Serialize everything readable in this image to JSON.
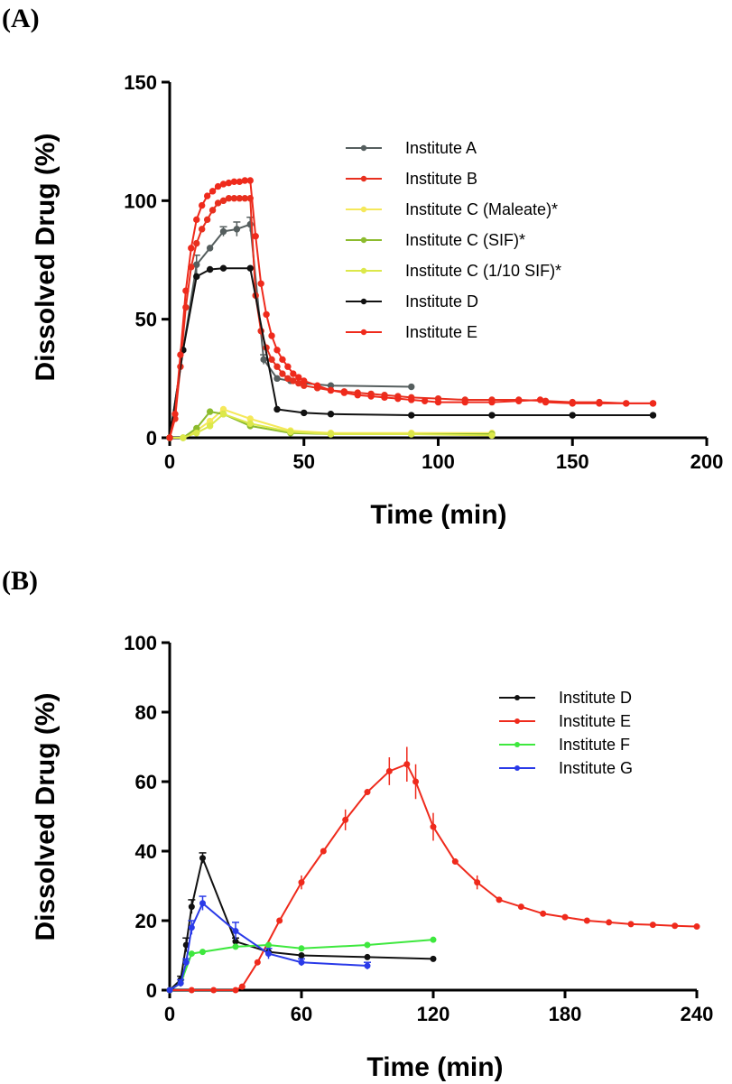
{
  "chart_data": [
    {
      "panel_label": "(A)",
      "type": "line",
      "xlabel": "Time (min)",
      "ylabel": "Dissolved Drug (%)",
      "xlim": [
        0,
        200
      ],
      "ylim": [
        0,
        150
      ],
      "xticks": [
        0,
        50,
        100,
        150,
        200
      ],
      "yticks": [
        0,
        50,
        100,
        150
      ],
      "xtick_labels": [
        "0",
        "50",
        "100",
        "150",
        "200"
      ],
      "ytick_labels": [
        "0",
        "50",
        "100",
        "150"
      ],
      "legend_position": "upper-right",
      "series": [
        {
          "name": "Institute A",
          "color": "#555e5e",
          "x": [
            0,
            5,
            10,
            15,
            20,
            25,
            30,
            35,
            40,
            45,
            50,
            60,
            90
          ],
          "y": [
            0,
            37,
            73,
            80,
            87,
            88,
            90,
            33,
            25,
            24,
            23,
            22,
            21.5
          ],
          "err": [
            0,
            0,
            4,
            0,
            2,
            3,
            3,
            2,
            0,
            0,
            0,
            0,
            0
          ]
        },
        {
          "name": "Institute B",
          "color": "#e8301f",
          "x": [
            0,
            2,
            4,
            6,
            8,
            10,
            12,
            14,
            16,
            18,
            20,
            22,
            24,
            26,
            28,
            30,
            32,
            34,
            36,
            38,
            40,
            42,
            44,
            46,
            48,
            50,
            55,
            60,
            65,
            70,
            75,
            80,
            85,
            90,
            100,
            110,
            120,
            130,
            140,
            150,
            160,
            170,
            180
          ],
          "y": [
            0,
            8,
            30,
            55,
            72,
            82,
            88,
            92,
            96,
            99,
            100,
            101,
            101,
            101,
            101,
            101,
            60,
            45,
            38,
            33,
            30,
            27,
            25,
            24,
            23,
            22,
            21,
            20,
            19.5,
            19,
            18.5,
            18,
            17.5,
            17,
            16.5,
            16,
            16,
            16,
            15.5,
            15,
            15,
            14.5,
            14.5
          ]
        },
        {
          "name": "Institute C (Maleate)*",
          "color": "#f5e85a",
          "x": [
            0,
            5,
            10,
            15,
            20,
            30,
            45,
            60,
            90,
            120
          ],
          "y": [
            0,
            0,
            3,
            7,
            12,
            8,
            3,
            2,
            2,
            2
          ]
        },
        {
          "name": "Institute C (SIF)*",
          "color": "#8cbb2e",
          "x": [
            0,
            5,
            10,
            15,
            20,
            30,
            45,
            60,
            90,
            120
          ],
          "y": [
            0,
            0,
            4,
            11,
            10,
            5,
            2,
            1.5,
            1.5,
            1.5
          ]
        },
        {
          "name": "Institute C (1/10 SIF)*",
          "color": "#dce84a",
          "x": [
            0,
            5,
            10,
            15,
            20,
            30,
            45,
            60,
            90,
            120
          ],
          "y": [
            0,
            0,
            2,
            5,
            10,
            6,
            2.5,
            1.5,
            1.5,
            1
          ]
        },
        {
          "name": "Institute D",
          "color": "#111111",
          "x": [
            0,
            5,
            10,
            15,
            20,
            30,
            40,
            50,
            60,
            90,
            120,
            150,
            180
          ],
          "y": [
            0,
            37,
            68,
            71,
            71.5,
            71.5,
            12,
            10.5,
            10,
            9.5,
            9.5,
            9.5,
            9.5
          ]
        },
        {
          "name": "Institute E",
          "color": "#ef2a1c",
          "x": [
            0,
            2,
            4,
            6,
            8,
            10,
            12,
            14,
            16,
            18,
            20,
            22,
            24,
            26,
            28,
            30,
            32,
            34,
            36,
            38,
            40,
            42,
            44,
            46,
            48,
            50,
            55,
            60,
            65,
            70,
            75,
            80,
            85,
            90,
            95,
            100,
            110,
            120,
            130,
            138,
            140,
            150,
            160,
            170,
            180
          ],
          "y": [
            0,
            10,
            35,
            62,
            80,
            92,
            98,
            102,
            104,
            106,
            107,
            107.5,
            108,
            108,
            108.5,
            108.5,
            85,
            65,
            52,
            43,
            37,
            33,
            30,
            27,
            25.5,
            24,
            22,
            20,
            19,
            18,
            17.5,
            17,
            16.5,
            16,
            15.5,
            15,
            15,
            15,
            15.5,
            16,
            15,
            14.5,
            14.5,
            14.5,
            14.5
          ]
        }
      ]
    },
    {
      "panel_label": "(B)",
      "type": "line",
      "xlabel": "Time (min)",
      "ylabel": "Dissolved Drug (%)",
      "xlim": [
        0,
        240
      ],
      "ylim": [
        0,
        100
      ],
      "xticks": [
        0,
        60,
        120,
        180,
        240
      ],
      "yticks": [
        0,
        20,
        40,
        60,
        80,
        100
      ],
      "xtick_labels": [
        "0",
        "60",
        "120",
        "180",
        "240"
      ],
      "ytick_labels": [
        "0",
        "20",
        "40",
        "60",
        "80",
        "100"
      ],
      "legend_position": "upper-right",
      "series": [
        {
          "name": "Institute D",
          "color": "#111111",
          "x": [
            0,
            5,
            7.5,
            10,
            15,
            30,
            45,
            60,
            90,
            120
          ],
          "y": [
            0,
            3,
            13,
            24,
            38,
            14,
            11,
            10,
            9.5,
            9
          ],
          "err": [
            0,
            1,
            2,
            2,
            1.5,
            1,
            0,
            0,
            0,
            0
          ]
        },
        {
          "name": "Institute E",
          "color": "#ef2a1c",
          "x": [
            0,
            10,
            20,
            30,
            33,
            40,
            50,
            60,
            70,
            80,
            90,
            100,
            108,
            112,
            120,
            130,
            140,
            150,
            160,
            170,
            180,
            190,
            200,
            210,
            220,
            230,
            240
          ],
          "y": [
            0,
            0,
            0,
            0,
            1,
            8,
            20,
            31,
            40,
            49,
            57,
            63,
            65,
            60,
            47,
            37,
            31,
            26,
            24,
            22,
            21,
            20,
            19.5,
            19,
            18.8,
            18.5,
            18.3
          ],
          "err_band": [
            [
              60,
              2
            ],
            [
              80,
              3
            ],
            [
              100,
              4
            ],
            [
              108,
              5
            ],
            [
              112,
              5
            ],
            [
              120,
              4
            ],
            [
              140,
              2
            ]
          ]
        },
        {
          "name": "Institute F",
          "color": "#3ee83e",
          "x": [
            0,
            5,
            10,
            15,
            30,
            45,
            60,
            90,
            120
          ],
          "y": [
            0,
            2,
            10.5,
            11,
            12.5,
            13,
            12,
            13,
            14.5
          ]
        },
        {
          "name": "Institute G",
          "color": "#2a3ae8",
          "x": [
            0,
            5,
            7.5,
            10,
            15,
            30,
            45,
            60,
            90
          ],
          "y": [
            0,
            2,
            8,
            18,
            25,
            17,
            10.5,
            8,
            7
          ],
          "err": [
            0,
            1,
            1,
            2,
            2,
            2.5,
            1.5,
            1,
            1
          ]
        }
      ]
    }
  ]
}
